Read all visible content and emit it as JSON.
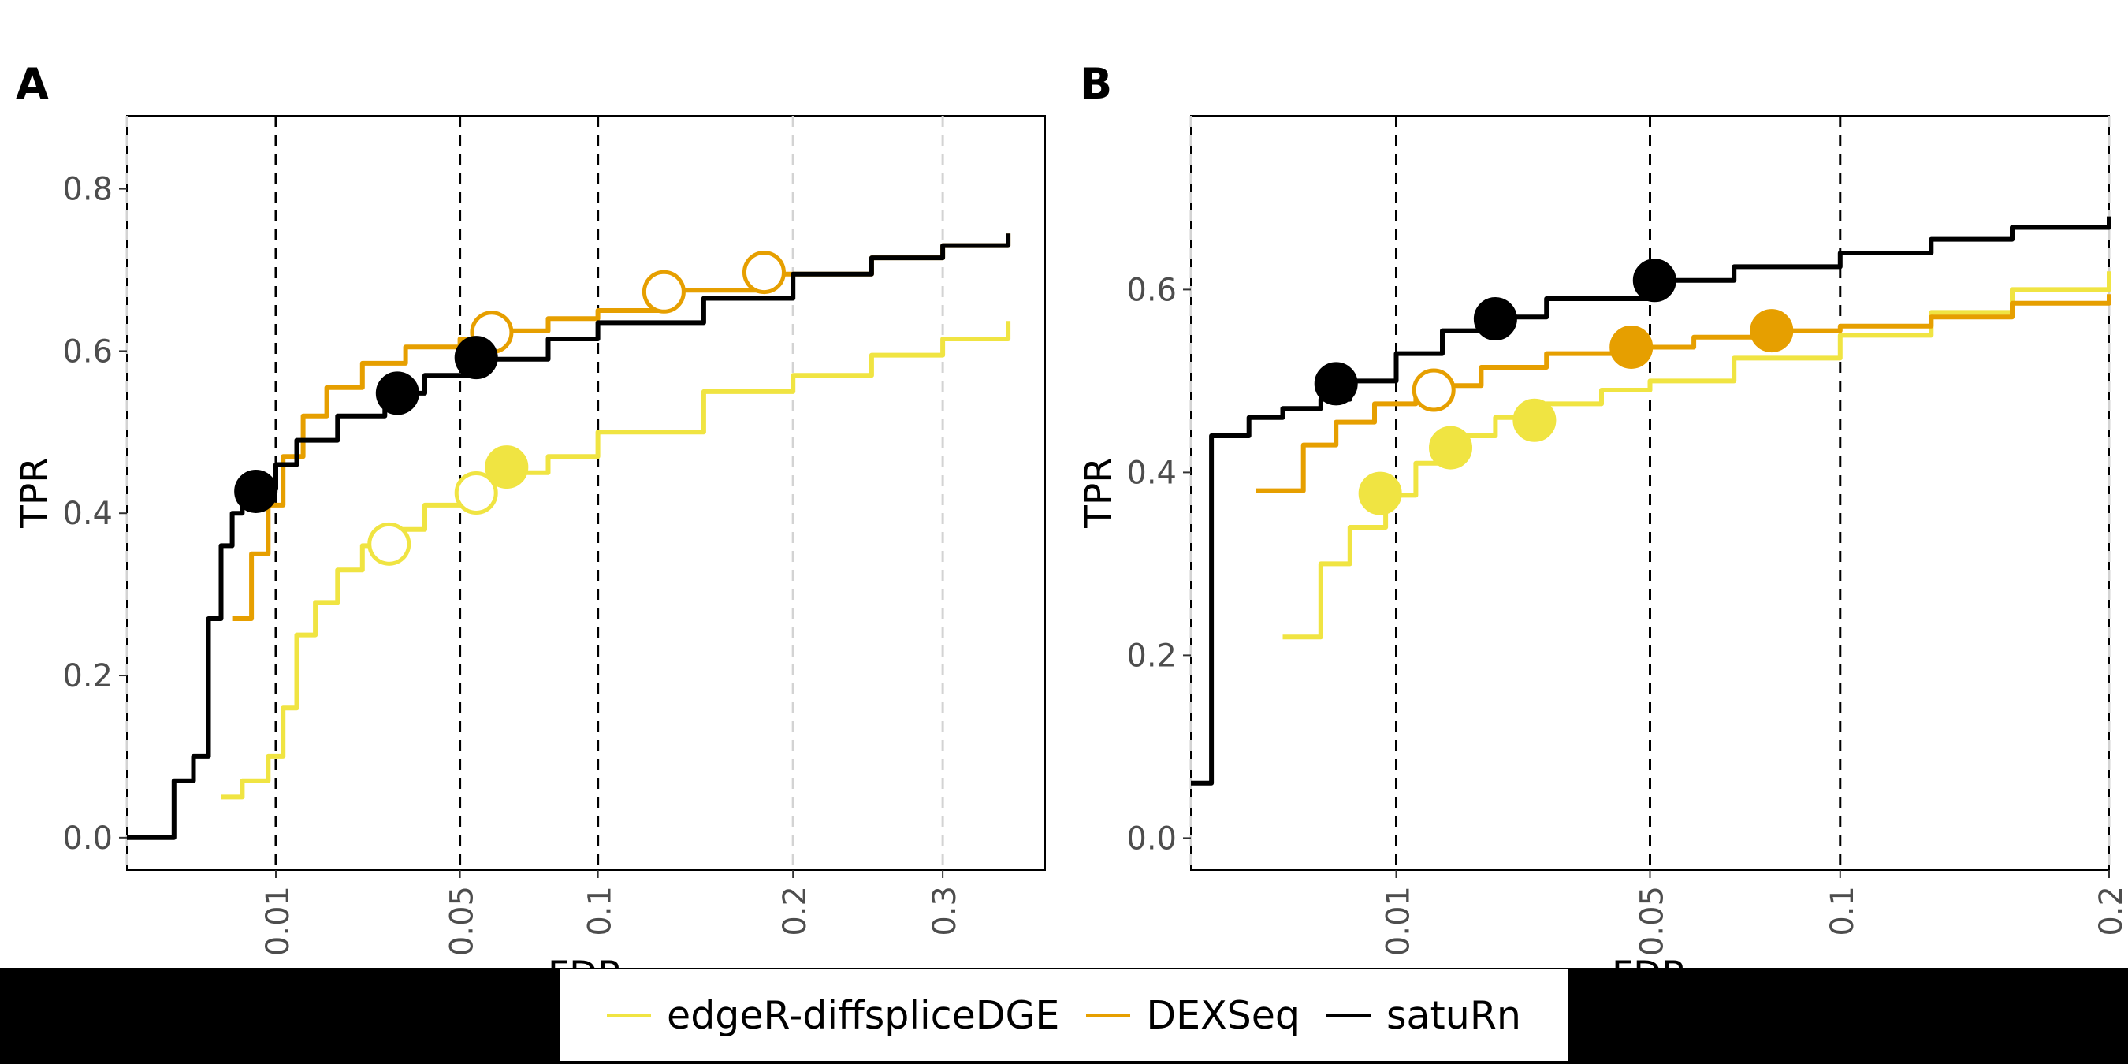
{
  "colors": {
    "edgeR-diffspliceDGE": "#F0E442",
    "DEXSeq": "#E69F00",
    "satuRn": "#000000"
  },
  "legend": {
    "items": [
      {
        "label": "edgeR-diffspliceDGE",
        "color": "#F0E442"
      },
      {
        "label": "DEXSeq",
        "color": "#E69F00"
      },
      {
        "label": "satuRn",
        "color": "#000000"
      }
    ]
  },
  "chart_data": [
    {
      "panel": "A",
      "type": "line",
      "xlabel": "FDR",
      "ylabel": "TPR",
      "x_scale": "sqrt",
      "xlim": [
        0.0,
        0.38
      ],
      "ylim": [
        -0.04,
        0.89
      ],
      "x_ticks": [
        0.01,
        0.05,
        0.1,
        0.2,
        0.3
      ],
      "x_tick_labels": [
        "0.01",
        "0.05",
        "0.1",
        "0.2",
        "0.3"
      ],
      "y_ticks": [
        0.0,
        0.2,
        0.4,
        0.6,
        0.8
      ],
      "y_tick_labels": [
        "0.0",
        "0.2",
        "0.4",
        "0.6",
        "0.8"
      ],
      "threshold_lines": [
        0.01,
        0.05,
        0.1
      ],
      "grid_lines": [
        0.0,
        0.2,
        0.3
      ],
      "series": [
        {
          "name": "edgeR-diffspliceDGE",
          "x": [
            0.004,
            0.006,
            0.009,
            0.011,
            0.013,
            0.016,
            0.02,
            0.025,
            0.03,
            0.04,
            0.05,
            0.06,
            0.08,
            0.1,
            0.15,
            0.2,
            0.25,
            0.3,
            0.35
          ],
          "y": [
            0.05,
            0.07,
            0.1,
            0.16,
            0.25,
            0.29,
            0.33,
            0.36,
            0.38,
            0.41,
            0.43,
            0.45,
            0.47,
            0.5,
            0.55,
            0.57,
            0.595,
            0.615,
            0.637
          ],
          "markers": [
            {
              "x": 0.031,
              "y": 0.362,
              "filled": false
            },
            {
              "x": 0.055,
              "y": 0.425,
              "filled": false
            },
            {
              "x": 0.065,
              "y": 0.457,
              "filled": true
            }
          ]
        },
        {
          "name": "DEXSeq",
          "x": [
            0.005,
            0.007,
            0.009,
            0.011,
            0.014,
            0.018,
            0.025,
            0.035,
            0.05,
            0.06,
            0.08,
            0.1,
            0.13,
            0.18,
            0.25,
            0.3,
            0.35
          ],
          "y": [
            0.27,
            0.35,
            0.41,
            0.47,
            0.52,
            0.555,
            0.585,
            0.605,
            0.615,
            0.625,
            0.64,
            0.65,
            0.675,
            0.695,
            0.715,
            0.73,
            0.745
          ],
          "markers": [
            {
              "x": 0.06,
              "y": 0.623,
              "filled": false
            },
            {
              "x": 0.13,
              "y": 0.673,
              "filled": false
            },
            {
              "x": 0.183,
              "y": 0.697,
              "filled": false
            }
          ]
        },
        {
          "name": "satuRn",
          "x": [
            0.0,
            0.001,
            0.002,
            0.003,
            0.004,
            0.005,
            0.006,
            0.008,
            0.01,
            0.013,
            0.02,
            0.03,
            0.04,
            0.055,
            0.08,
            0.1,
            0.15,
            0.2,
            0.25,
            0.3,
            0.35
          ],
          "y": [
            0.0,
            0.07,
            0.1,
            0.27,
            0.36,
            0.4,
            0.42,
            0.43,
            0.46,
            0.49,
            0.52,
            0.548,
            0.57,
            0.59,
            0.615,
            0.635,
            0.665,
            0.695,
            0.715,
            0.73,
            0.745
          ],
          "markers": [
            {
              "x": 0.0075,
              "y": 0.427,
              "filled": true
            },
            {
              "x": 0.033,
              "y": 0.548,
              "filled": true
            },
            {
              "x": 0.055,
              "y": 0.592,
              "filled": true
            }
          ]
        }
      ]
    },
    {
      "panel": "B",
      "type": "line",
      "xlabel": "FDR",
      "ylabel": "TPR",
      "x_scale": "sqrt",
      "xlim": [
        0.0,
        0.2
      ],
      "ylim": [
        -0.035,
        0.79
      ],
      "x_ticks": [
        0.01,
        0.05,
        0.1,
        0.2
      ],
      "x_tick_labels": [
        "0.01",
        "0.05",
        "0.1",
        "0.2"
      ],
      "y_ticks": [
        0.0,
        0.2,
        0.4,
        0.6
      ],
      "y_tick_labels": [
        "0.0",
        "0.2",
        "0.4",
        "0.6"
      ],
      "threshold_lines": [
        0.01,
        0.05,
        0.1
      ],
      "grid_lines": [
        0.0,
        0.2
      ],
      "series": [
        {
          "name": "edgeR-diffspliceDGE",
          "x": [
            0.002,
            0.004,
            0.006,
            0.009,
            0.012,
            0.016,
            0.022,
            0.03,
            0.04,
            0.05,
            0.07,
            0.1,
            0.13,
            0.16,
            0.2
          ],
          "y": [
            0.22,
            0.3,
            0.34,
            0.375,
            0.41,
            0.44,
            0.46,
            0.475,
            0.49,
            0.5,
            0.525,
            0.55,
            0.575,
            0.6,
            0.62
          ],
          "markers": [
            {
              "x": 0.0085,
              "y": 0.377,
              "filled": true
            },
            {
              "x": 0.016,
              "y": 0.427,
              "filled": true
            },
            {
              "x": 0.028,
              "y": 0.457,
              "filled": true
            }
          ]
        },
        {
          "name": "DEXSeq",
          "x": [
            0.001,
            0.003,
            0.005,
            0.008,
            0.012,
            0.02,
            0.03,
            0.045,
            0.06,
            0.075,
            0.1,
            0.13,
            0.16,
            0.2
          ],
          "y": [
            0.38,
            0.43,
            0.455,
            0.475,
            0.495,
            0.515,
            0.53,
            0.537,
            0.548,
            0.555,
            0.56,
            0.57,
            0.585,
            0.595
          ],
          "markers": [
            {
              "x": 0.014,
              "y": 0.49,
              "filled": false
            },
            {
              "x": 0.046,
              "y": 0.537,
              "filled": true
            },
            {
              "x": 0.08,
              "y": 0.555,
              "filled": true
            }
          ]
        },
        {
          "name": "satuRn",
          "x": [
            0.0,
            0.0001,
            0.0008,
            0.002,
            0.004,
            0.006,
            0.01,
            0.015,
            0.02,
            0.03,
            0.05,
            0.07,
            0.1,
            0.13,
            0.16,
            0.2
          ],
          "y": [
            0.06,
            0.44,
            0.46,
            0.47,
            0.48,
            0.5,
            0.53,
            0.555,
            0.57,
            0.59,
            0.61,
            0.625,
            0.64,
            0.655,
            0.668,
            0.68
          ],
          "markers": [
            {
              "x": 0.005,
              "y": 0.497,
              "filled": true
            },
            {
              "x": 0.022,
              "y": 0.568,
              "filled": true
            },
            {
              "x": 0.051,
              "y": 0.61,
              "filled": true
            }
          ]
        }
      ]
    }
  ]
}
